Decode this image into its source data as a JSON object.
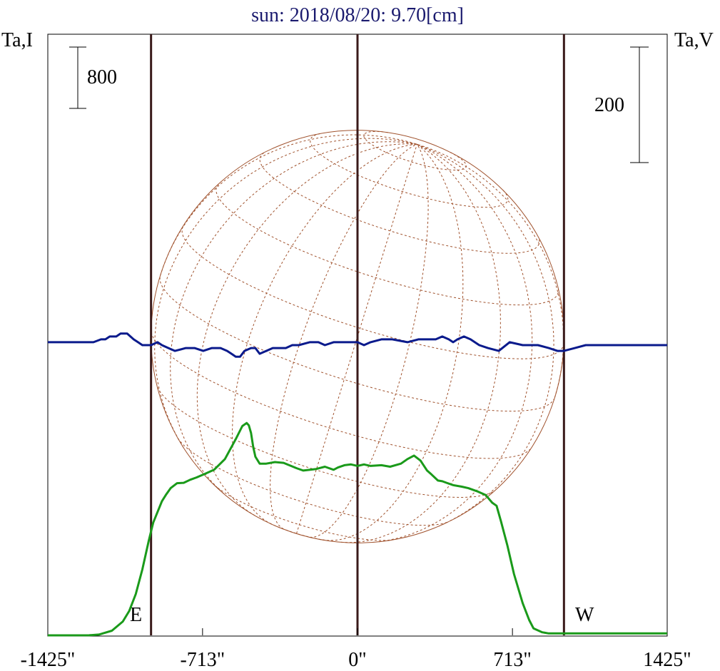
{
  "title": "sun: 2018/08/20: 9.70[cm]",
  "left_axis_label": "Ta,I",
  "right_axis_label": "Ta,V",
  "scale_bars": {
    "left_value": "800",
    "right_value": "200"
  },
  "markers": {
    "east": "E",
    "west": "W"
  },
  "colors": {
    "intensity": "#1a9a1a",
    "polarization": "#0a1a8c",
    "disk": "#a0522d",
    "limb_lines": "#3a1a1a",
    "title": "#1a1a6e"
  },
  "chart_data": {
    "type": "line",
    "title": "sun: 2018/08/20: 9.70[cm]",
    "x_ticks": [
      "-1425\"",
      "-713\"",
      "0\"",
      "713\"",
      "1425\""
    ],
    "x_tick_values": [
      -1425,
      -713,
      0,
      713,
      1425
    ],
    "xlim": [
      -1425,
      1425
    ],
    "limb_positions": [
      -950,
      0,
      950
    ],
    "solar_disk_radius": 950,
    "series": [
      {
        "key": "intensity",
        "x": [
          -1425,
          -1235,
          -1190,
          -1130,
          -1080,
          -1050,
          -1020,
          -990,
          -960,
          -940,
          -920,
          -900,
          -880,
          -860,
          -830,
          -800,
          -770,
          -740,
          -700,
          -660,
          -610,
          -560,
          -530,
          -510,
          -500,
          -490,
          -480,
          -470,
          -450,
          -420,
          -400,
          -380,
          -340,
          -280,
          -250,
          -190,
          -150,
          -110,
          -90,
          -60,
          -30,
          0,
          30,
          60,
          110,
          150,
          200,
          230,
          260,
          290,
          320,
          340,
          370,
          390,
          410,
          440,
          480,
          510,
          550,
          590,
          620,
          640,
          660,
          690,
          720,
          760,
          790,
          810,
          850,
          880,
          910,
          940,
          960,
          980,
          1000,
          1030,
          1060,
          1090,
          1120,
          1150,
          1180,
          1425
        ],
        "y": [
          0,
          1,
          10,
          60,
          180,
          320,
          540,
          860,
          1240,
          1470,
          1610,
          1750,
          1840,
          1920,
          1985,
          1990,
          2030,
          2060,
          2110,
          2160,
          2300,
          2560,
          2730,
          2770,
          2740,
          2640,
          2460,
          2330,
          2240,
          2240,
          2250,
          2260,
          2250,
          2180,
          2150,
          2170,
          2200,
          2160,
          2190,
          2220,
          2230,
          2210,
          2230,
          2210,
          2220,
          2200,
          2240,
          2300,
          2345,
          2280,
          2150,
          2100,
          2020,
          2010,
          1990,
          1960,
          1940,
          1920,
          1880,
          1830,
          1730,
          1690,
          1490,
          1170,
          800,
          420,
          200,
          90,
          40,
          25,
          25,
          25,
          25,
          25,
          25,
          25,
          25,
          25,
          25,
          25,
          25,
          25
        ]
      },
      {
        "key": "polarization",
        "x": [
          -1425,
          -1250,
          -1215,
          -1180,
          -1160,
          -1140,
          -1110,
          -1090,
          -1060,
          -1030,
          -1010,
          -990,
          -970,
          -950,
          -920,
          -900,
          -870,
          -840,
          -790,
          -750,
          -710,
          -670,
          -630,
          -600,
          -580,
          -560,
          -540,
          -520,
          -490,
          -470,
          -450,
          -420,
          -390,
          -360,
          -330,
          -300,
          -270,
          -220,
          -180,
          -150,
          -110,
          -80,
          -40,
          0,
          30,
          60,
          110,
          160,
          230,
          280,
          320,
          360,
          390,
          420,
          440,
          460,
          490,
          520,
          560,
          600,
          650,
          700,
          760,
          830,
          880,
          920,
          950,
          1000,
          1050,
          1100,
          1425
        ],
        "y": [
          5,
          5,
          5,
          10,
          10,
          15,
          15,
          20,
          20,
          10,
          5,
          0,
          0,
          0,
          5,
          0,
          -5,
          -10,
          -5,
          -5,
          -10,
          -5,
          -5,
          -10,
          -15,
          -20,
          -20,
          -10,
          -5,
          -5,
          -15,
          -10,
          -5,
          -5,
          -5,
          0,
          0,
          5,
          5,
          0,
          5,
          5,
          5,
          5,
          0,
          5,
          10,
          10,
          5,
          10,
          10,
          10,
          15,
          10,
          5,
          10,
          15,
          10,
          0,
          -5,
          -10,
          5,
          0,
          0,
          -5,
          -10,
          -10,
          -5,
          0,
          0,
          0
        ]
      }
    ]
  }
}
